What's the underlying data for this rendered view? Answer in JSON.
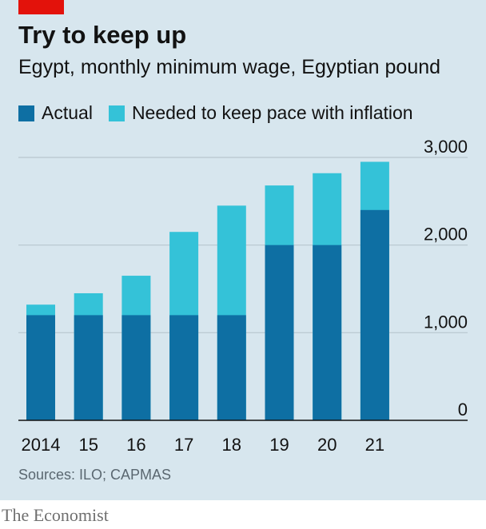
{
  "header": {
    "title": "Try to keep up",
    "subtitle": "Egypt, monthly minimum wage, Egyptian pound"
  },
  "legend": {
    "actual": "Actual",
    "needed": "Needed to keep pace with inflation"
  },
  "footer": {
    "source": "Sources: ILO; CAPMAS",
    "brand": "The Economist"
  },
  "colors": {
    "actual": "#0e6fa3",
    "needed": "#34c2d8",
    "grid": "#b8c6cf",
    "axis": "#121212",
    "background": "#d7e6ee",
    "brand_red": "#e3120b"
  },
  "chart_data": {
    "type": "bar",
    "categories": [
      "2014",
      "15",
      "16",
      "17",
      "18",
      "19",
      "20",
      "21"
    ],
    "series": [
      {
        "name": "Actual",
        "values": [
          1200,
          1200,
          1200,
          1200,
          1200,
          2000,
          2000,
          2400
        ]
      },
      {
        "name": "Needed to keep pace with inflation",
        "values": [
          1320,
          1450,
          1650,
          2150,
          2450,
          2680,
          2820,
          2950
        ]
      }
    ],
    "ylim": [
      0,
      3000
    ],
    "yticks": [
      0,
      1000,
      2000,
      3000
    ],
    "ytick_labels": [
      "0",
      "1,000",
      "2,000",
      "3,000"
    ],
    "y_axis_side": "right",
    "grid": true,
    "legend_position": "top-left",
    "overlay": true
  }
}
